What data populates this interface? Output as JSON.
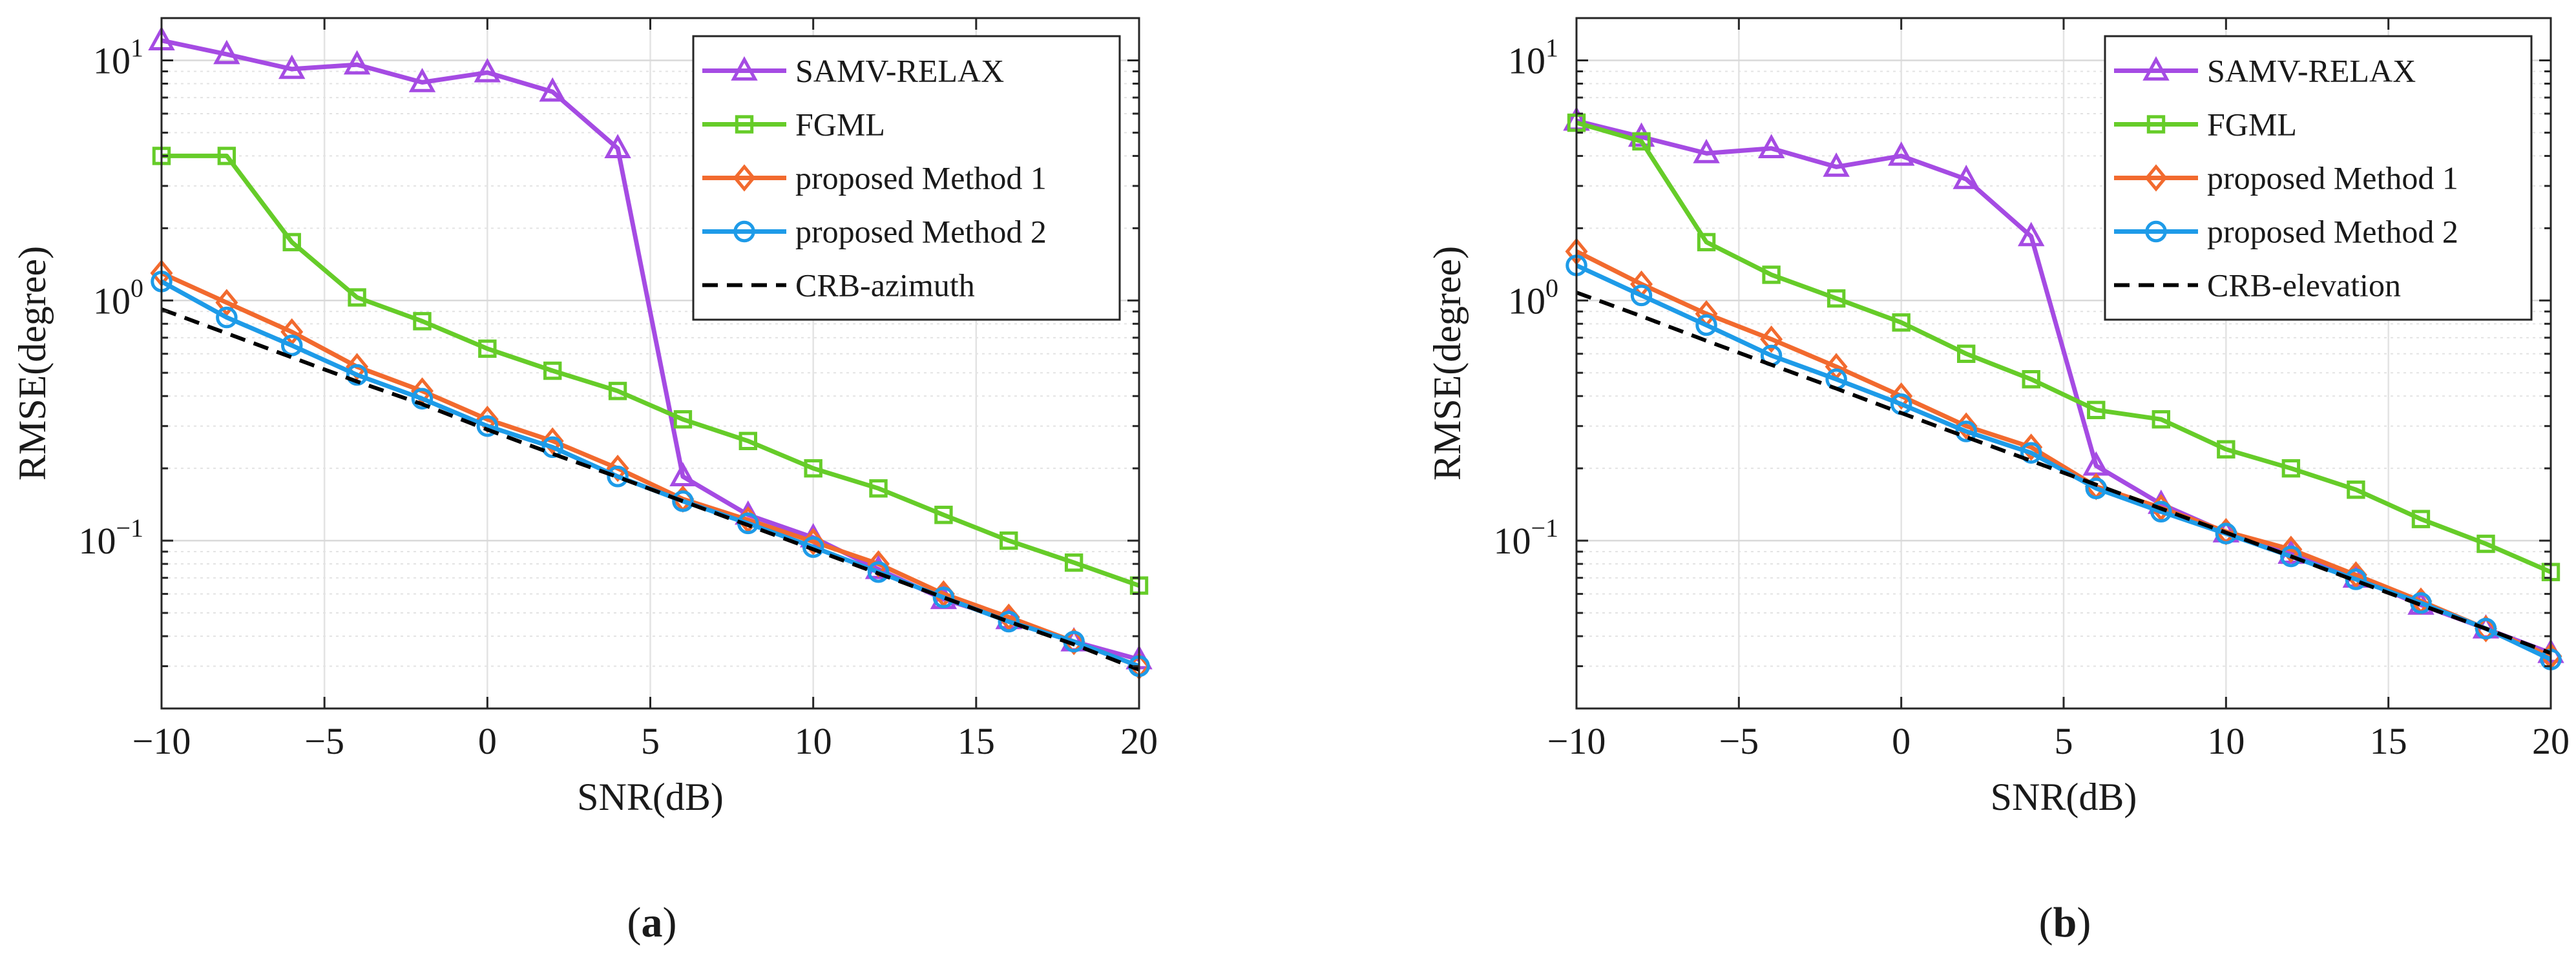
{
  "chart_data": [
    {
      "type": "line",
      "yscale": "log",
      "panel_label": {
        "open": "(",
        "letter": "a",
        "close": ")"
      },
      "xlabel": "SNR(dB)",
      "ylabel": "RMSE(degree)",
      "xlim": [
        -10,
        20
      ],
      "ylim": [
        0.02,
        15
      ],
      "grid": true,
      "legend_position": "top-right",
      "x": [
        -10,
        -8,
        -6,
        -4,
        -2,
        0,
        2,
        4,
        6,
        8,
        10,
        12,
        14,
        16,
        18,
        20
      ],
      "xticks": [
        {
          "v": -10,
          "label": "−10"
        },
        {
          "v": -5,
          "label": "−5"
        },
        {
          "v": 0,
          "label": "0"
        },
        {
          "v": 5,
          "label": "5"
        },
        {
          "v": 10,
          "label": "10"
        },
        {
          "v": 15,
          "label": "15"
        },
        {
          "v": 20,
          "label": "20"
        }
      ],
      "yticks": [
        {
          "v": 0.1,
          "base": "10",
          "exp": "−1"
        },
        {
          "v": 1,
          "base": "10",
          "exp": "0"
        },
        {
          "v": 10,
          "base": "10",
          "exp": "1"
        }
      ],
      "series": [
        {
          "name": "SAMV-RELAX",
          "color": "#A54BE3",
          "marker": "triangle",
          "dash": false,
          "values": [
            12.1,
            10.6,
            9.2,
            9.6,
            8.1,
            8.9,
            7.4,
            4.3,
            0.185,
            0.128,
            0.103,
            0.076,
            0.057,
            0.047,
            0.038,
            0.032
          ]
        },
        {
          "name": "FGML",
          "color": "#66CC29",
          "marker": "square",
          "dash": false,
          "values": [
            4.0,
            4.0,
            1.75,
            1.03,
            0.82,
            0.63,
            0.51,
            0.42,
            0.32,
            0.26,
            0.2,
            0.165,
            0.128,
            0.1,
            0.081,
            0.065
          ]
        },
        {
          "name": "proposed Method 1",
          "color": "#F26A2E",
          "marker": "diamond",
          "dash": false,
          "values": [
            1.3,
            0.98,
            0.74,
            0.53,
            0.42,
            0.32,
            0.26,
            0.2,
            0.149,
            0.122,
            0.099,
            0.08,
            0.06,
            0.048,
            0.038,
            0.03
          ]
        },
        {
          "name": "proposed Method 2",
          "color": "#1E9BE8",
          "marker": "circle",
          "dash": false,
          "values": [
            1.2,
            0.85,
            0.65,
            0.49,
            0.39,
            0.3,
            0.245,
            0.185,
            0.146,
            0.118,
            0.094,
            0.074,
            0.058,
            0.046,
            0.038,
            0.03
          ]
        },
        {
          "name": "CRB-azimuth",
          "color": "#000000",
          "marker": "none",
          "dash": true,
          "values": [
            0.92,
            0.73,
            0.58,
            0.46,
            0.37,
            0.29,
            0.23,
            0.184,
            0.146,
            0.116,
            0.092,
            0.073,
            0.058,
            0.046,
            0.037,
            0.029
          ]
        }
      ]
    },
    {
      "type": "line",
      "yscale": "log",
      "panel_label": {
        "open": "(",
        "letter": "b",
        "close": ")"
      },
      "xlabel": "SNR(dB)",
      "ylabel": "RMSE(degree)",
      "xlim": [
        -10,
        20
      ],
      "ylim": [
        0.02,
        15
      ],
      "grid": true,
      "legend_position": "top-right",
      "x": [
        -10,
        -8,
        -6,
        -4,
        -2,
        0,
        2,
        4,
        6,
        8,
        10,
        12,
        14,
        16,
        18,
        20
      ],
      "xticks": [
        {
          "v": -10,
          "label": "−10"
        },
        {
          "v": -5,
          "label": "−5"
        },
        {
          "v": 0,
          "label": "0"
        },
        {
          "v": 5,
          "label": "5"
        },
        {
          "v": 10,
          "label": "10"
        },
        {
          "v": 15,
          "label": "15"
        },
        {
          "v": 20,
          "label": "20"
        }
      ],
      "yticks": [
        {
          "v": 0.1,
          "base": "10",
          "exp": "−1"
        },
        {
          "v": 1,
          "base": "10",
          "exp": "0"
        },
        {
          "v": 10,
          "base": "10",
          "exp": "1"
        }
      ],
      "series": [
        {
          "name": "SAMV-RELAX",
          "color": "#A54BE3",
          "marker": "triangle",
          "dash": false,
          "values": [
            5.6,
            4.8,
            4.1,
            4.3,
            3.6,
            4.0,
            3.2,
            1.85,
            0.205,
            0.142,
            0.108,
            0.088,
            0.07,
            0.054,
            0.043,
            0.034
          ]
        },
        {
          "name": "FGML",
          "color": "#66CC29",
          "marker": "square",
          "dash": false,
          "values": [
            5.5,
            4.6,
            1.75,
            1.28,
            1.02,
            0.81,
            0.6,
            0.47,
            0.35,
            0.32,
            0.24,
            0.2,
            0.163,
            0.123,
            0.097,
            0.074
          ]
        },
        {
          "name": "proposed Method 1",
          "color": "#F26A2E",
          "marker": "diamond",
          "dash": false,
          "values": [
            1.6,
            1.17,
            0.88,
            0.69,
            0.53,
            0.4,
            0.3,
            0.245,
            0.168,
            0.137,
            0.109,
            0.092,
            0.072,
            0.056,
            0.043,
            0.033
          ]
        },
        {
          "name": "proposed Method 2",
          "color": "#1E9BE8",
          "marker": "circle",
          "dash": false,
          "values": [
            1.4,
            1.05,
            0.79,
            0.59,
            0.47,
            0.37,
            0.285,
            0.232,
            0.165,
            0.132,
            0.107,
            0.086,
            0.069,
            0.055,
            0.043,
            0.032
          ]
        },
        {
          "name": "CRB-elevation",
          "color": "#000000",
          "marker": "none",
          "dash": true,
          "values": [
            1.08,
            0.86,
            0.68,
            0.54,
            0.43,
            0.34,
            0.27,
            0.215,
            0.171,
            0.136,
            0.108,
            0.086,
            0.068,
            0.054,
            0.043,
            0.034
          ]
        }
      ]
    }
  ]
}
